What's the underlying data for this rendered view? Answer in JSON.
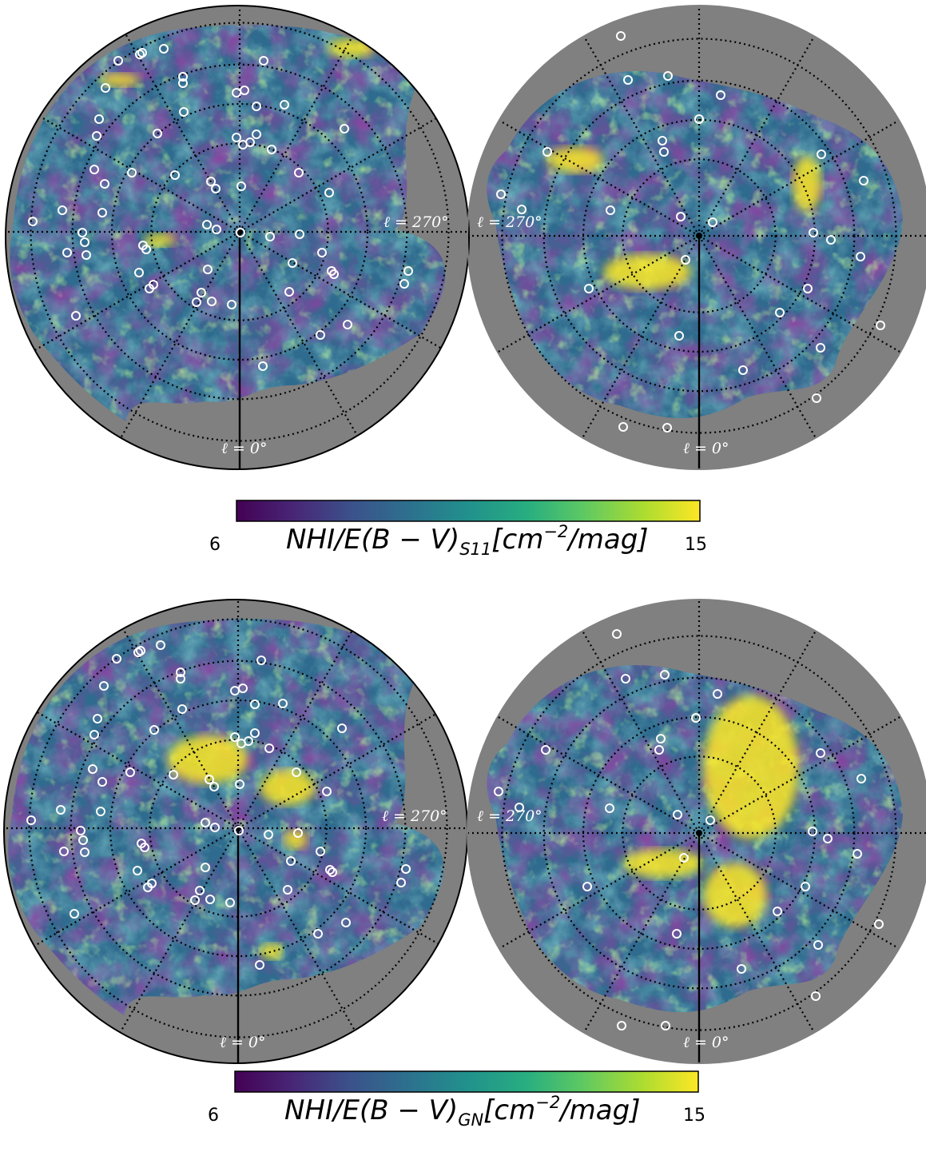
{
  "chart_data": [
    {
      "type": "heatmap",
      "projection": "orthographic-sky",
      "panel": "top",
      "colormap": "viridis",
      "color_range": [
        6,
        15
      ],
      "longitude_labels": [
        "ℓ = 270°",
        "ℓ = 0°",
        "ℓ = 270°",
        "ℓ = 0°"
      ],
      "colorbar": {
        "min_label": "6",
        "max_label": "15",
        "label_main": "NHI/E(B − V)",
        "label_sub": "S11",
        "label_unit": "[cm",
        "label_exp": "−2",
        "label_end": "/mag]"
      },
      "masked_color": "#808080",
      "marker": "open white circles"
    },
    {
      "type": "heatmap",
      "projection": "orthographic-sky",
      "panel": "bottom",
      "colormap": "viridis",
      "color_range": [
        6,
        15
      ],
      "longitude_labels": [
        "ℓ = 270°",
        "ℓ = 0°",
        "ℓ = 270°",
        "ℓ = 0°"
      ],
      "colorbar": {
        "min_label": "6",
        "max_label": "15",
        "label_main": "NHI/E(B − V)",
        "label_sub": "GN",
        "label_unit": "[cm",
        "label_exp": "−2",
        "label_end": "/mag]"
      },
      "masked_color": "#808080",
      "marker": "open white circles"
    }
  ],
  "colors": {
    "viridis_0": "#440154",
    "viridis_25": "#3b528b",
    "viridis_50": "#21918c",
    "viridis_75": "#5ec962",
    "viridis_100": "#fde725",
    "masked": "#808080"
  }
}
